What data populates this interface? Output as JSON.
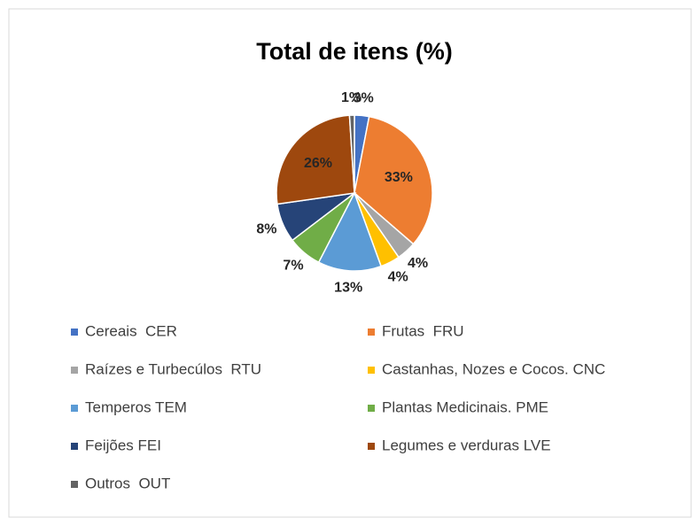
{
  "chart_data": {
    "type": "pie",
    "title": "Total de itens (%)",
    "categories": [
      "Cereais  CER",
      "Frutas  FRU",
      "Raízes e Turbecúlos  RTU",
      "Castanhas, Nozes e Cocos. CNC",
      "Temperos TEM",
      "Plantas Medicinais. PME",
      "Feijões FEI",
      "Legumes e verduras LVE",
      "Outros  OUT"
    ],
    "values": [
      3,
      33,
      4,
      4,
      13,
      7,
      8,
      26,
      1
    ],
    "value_labels": [
      "3%",
      "33%",
      "4%",
      "4%",
      "13%",
      "7%",
      "8%",
      "26%",
      "1%"
    ],
    "colors": [
      "#4472c4",
      "#ed7d31",
      "#a5a5a5",
      "#ffc000",
      "#5b9bd5",
      "#70ad47",
      "#264478",
      "#9e480e",
      "#636363"
    ],
    "legend": "bottom"
  }
}
